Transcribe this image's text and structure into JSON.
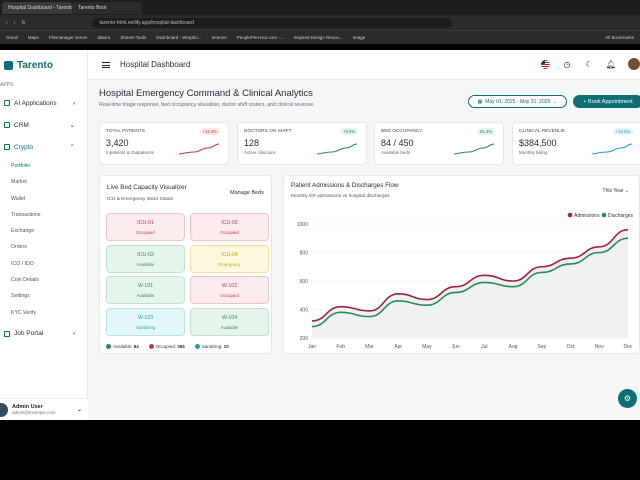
{
  "browser": {
    "tabs": [
      "Hospital Dashboard - Tarento Dashboard",
      "Tarento Boot"
    ],
    "url": "tarento-html.netlify.app/hospital-dashboard",
    "bookmarks": [
      "Gmail",
      "Maps",
      "Filemanager server",
      "datora",
      "Shares Tools",
      "Dashboard - Wrapbo...",
      "tentone",
      "PeoplePerHour.com -...",
      "Inspired Design Resou...",
      "Image",
      "All Bookmarks"
    ]
  },
  "brand": {
    "name": "Tarento"
  },
  "sidebar": {
    "section": "APPS",
    "items": [
      {
        "label": "AI Applications"
      },
      {
        "label": "CRM"
      },
      {
        "label": "Crypto"
      }
    ],
    "crypto_sub": [
      "Portfolio",
      "Market",
      "Wallet",
      "Transactions",
      "Exchange",
      "Orders",
      "ICO / IDO",
      "Coin Details",
      "Settings",
      "KYC Verify"
    ],
    "job_portal": "Job Portal",
    "user": {
      "name": "Admin User",
      "email": "admin@example.com"
    }
  },
  "header": {
    "title": "Hospital Dashboard"
  },
  "page": {
    "title": "Hospital Emergency Command & Clinical Analytics",
    "subtitle": "Real-time triage response, bed occupancy visualizer, doctor shift rosters, and clinical revenue.",
    "date_range": "May 01, 2025 - May 31, 2025",
    "book_button": "+ Book Appointment"
  },
  "stats": [
    {
      "label": "TOTAL PATIENTS",
      "value": "3,420",
      "note": "Inpatients & Outpatients",
      "badge": "+12.4%",
      "badge_bg": "#fde8ea",
      "badge_fg": "#c0392b",
      "color": "#c0394b"
    },
    {
      "label": "DOCTORS ON SHIFT",
      "value": "128",
      "note": "Active clinicians",
      "badge": "+8.2%",
      "badge_bg": "#e3f4ea",
      "badge_fg": "#2e8b57",
      "color": "#2e8b57"
    },
    {
      "label": "BED OCCUPANCY",
      "value": "84 / 450",
      "note": "Available beds",
      "badge": "81.3%",
      "badge_bg": "#e3f4ea",
      "badge_fg": "#2e8b57",
      "color": "#2e8b57"
    },
    {
      "label": "CLINICAL REVENUE",
      "value": "$384,500",
      "note": "Monthly billing",
      "badge": "+15.2%",
      "badge_bg": "#e0f3f5",
      "badge_fg": "#17a2b8",
      "color": "#17a2b8"
    }
  ],
  "beds": {
    "title": "Live Bed Capacity Visualizer",
    "subtitle": "ICU & Emergency Ward Status",
    "manage": "Manage Beds",
    "items": [
      {
        "name": "ICU-01",
        "status": "Occupied",
        "bg": "#fdecee",
        "fg": "#c0394b",
        "border": "#f2c4c9"
      },
      {
        "name": "ICU-02",
        "status": "Occupied",
        "bg": "#fdecee",
        "fg": "#c0394b",
        "border": "#f2c4c9"
      },
      {
        "name": "ICU-03",
        "status": "Available",
        "bg": "#e6f5ec",
        "fg": "#2e8b57",
        "border": "#bfe3cb"
      },
      {
        "name": "ICU-04",
        "status": "Emergency",
        "bg": "#fdf8dd",
        "fg": "#c9a400",
        "border": "#efe3a1"
      },
      {
        "name": "W-101",
        "status": "Available",
        "bg": "#e6f5ec",
        "fg": "#2e8b57",
        "border": "#bfe3cb"
      },
      {
        "name": "W-102",
        "status": "Occupied",
        "bg": "#fdecee",
        "fg": "#c0394b",
        "border": "#f2c4c9"
      },
      {
        "name": "W-103",
        "status": "Sanitizing",
        "bg": "#e4f6f8",
        "fg": "#17a2b8",
        "border": "#b8e3ea"
      },
      {
        "name": "W-104",
        "status": "Available",
        "bg": "#e6f5ec",
        "fg": "#2e8b57",
        "border": "#bfe3cb"
      }
    ],
    "legend": [
      {
        "label": "Available",
        "count": "84",
        "color": "#2e8b57"
      },
      {
        "label": "Occupied",
        "count": "366",
        "color": "#c0394b"
      },
      {
        "label": "Sanitizing",
        "count": "10",
        "color": "#17a2b8"
      }
    ]
  },
  "admissions": {
    "title": "Patient Admissions & Discharges Flow",
    "subtitle": "Monthly ER admissions vs hospital discharges",
    "period": "This Year"
  },
  "chart_data": {
    "type": "line",
    "categories": [
      "Jan",
      "Feb",
      "Mar",
      "Apr",
      "May",
      "Jun",
      "Jul",
      "Aug",
      "Sep",
      "Oct",
      "Nov",
      "Dec"
    ],
    "series": [
      {
        "name": "Admissions",
        "color": "#a0213a",
        "values": [
          320,
          420,
          390,
          510,
          470,
          560,
          640,
          600,
          700,
          760,
          840,
          960
        ]
      },
      {
        "name": "Discharges",
        "color": "#2e8b57",
        "values": [
          280,
          380,
          350,
          460,
          430,
          520,
          590,
          560,
          660,
          720,
          800,
          900
        ]
      }
    ],
    "y_ticks": [
      200,
      400,
      600,
      800,
      1000
    ],
    "ylim": [
      200,
      1000
    ],
    "legend_position": "top-right",
    "grid": true
  }
}
